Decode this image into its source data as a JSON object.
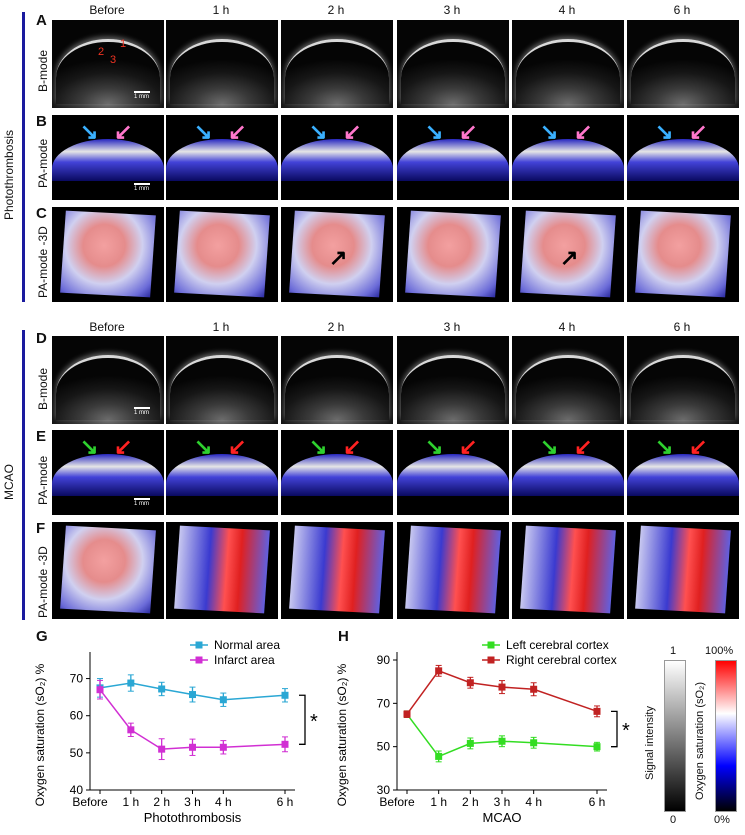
{
  "groups": {
    "top": "Photothrombosis",
    "bottom": "MCAO"
  },
  "time_labels": [
    "Before",
    "1 h",
    "2 h",
    "3 h",
    "4 h",
    "6 h"
  ],
  "panels": {
    "A": {
      "letter": "A",
      "row_label": "B-mode",
      "scale": "1 mm",
      "markers": [
        "1",
        "2",
        "3"
      ]
    },
    "B": {
      "letter": "B",
      "row_label": "PA-mode",
      "scale": "1 mm"
    },
    "C": {
      "letter": "C",
      "row_label": "PA-mode -3D"
    },
    "D": {
      "letter": "D",
      "row_label": "B-mode",
      "scale": "1 mm"
    },
    "E": {
      "letter": "E",
      "row_label": "PA-mode",
      "scale": "1 mm"
    },
    "F": {
      "letter": "F",
      "row_label": "PA-mode -3D"
    },
    "G": {
      "letter": "G"
    },
    "H": {
      "letter": "H"
    }
  },
  "colorbars": {
    "gray_label": "Signal intensity",
    "gray_top": "1",
    "gray_bottom": "0",
    "color_label": "Oxygen saturation (sO₂)",
    "color_top": "100%",
    "color_bottom": "0%",
    "colors": {
      "high": "#ff0000",
      "mid": "#ffffff",
      "low": "#0000ff",
      "black": "#000000"
    }
  },
  "chart_data": [
    {
      "type": "line",
      "panel": "G",
      "categories": [
        "Before",
        "1 h",
        "2 h",
        "3 h",
        "4 h",
        "6 h"
      ],
      "x": [
        0,
        1,
        2,
        3,
        4,
        6
      ],
      "xlabel": "Photothrombosis",
      "ylabel": "Oxygen saturation (sO₂) %",
      "ylim": [
        40,
        75
      ],
      "yticks": [
        40,
        50,
        60,
        70
      ],
      "significance": "*",
      "legend_position": "top-right",
      "series": [
        {
          "name": "Normal area",
          "color": "#2aa7d4",
          "values": [
            67.5,
            68.8,
            67.2,
            65.7,
            64.3,
            65.5
          ],
          "errors": [
            2.5,
            2.2,
            1.8,
            2.0,
            1.8,
            1.8
          ]
        },
        {
          "name": "Infarct area",
          "color": "#d12fd3",
          "values": [
            67.0,
            56.2,
            51.0,
            51.5,
            51.5,
            52.3
          ],
          "errors": [
            2.5,
            1.8,
            2.8,
            2.2,
            1.8,
            2.0
          ]
        }
      ]
    },
    {
      "type": "line",
      "panel": "H",
      "categories": [
        "Before",
        "1 h",
        "2 h",
        "3 h",
        "4 h",
        "6 h"
      ],
      "x": [
        0,
        1,
        2,
        3,
        4,
        6
      ],
      "xlabel": "MCAO",
      "ylabel": "Oxygen saturation (sO₂) %",
      "ylim": [
        30,
        90
      ],
      "yticks": [
        30,
        50,
        70,
        90
      ],
      "significance": "*",
      "legend_position": "top-right",
      "series": [
        {
          "name": "Left cerebral cortex",
          "color": "#33dd22",
          "values": [
            65.0,
            45.5,
            51.5,
            52.5,
            51.8,
            50.0
          ],
          "errors": [
            1.5,
            2.5,
            2.5,
            2.5,
            2.5,
            2.0
          ]
        },
        {
          "name": "Right cerebral cortex",
          "color": "#c12222",
          "values": [
            65.0,
            85.0,
            79.5,
            77.5,
            76.5,
            66.3
          ],
          "errors": [
            1.5,
            2.5,
            2.5,
            3.0,
            3.0,
            2.5
          ]
        }
      ]
    }
  ]
}
